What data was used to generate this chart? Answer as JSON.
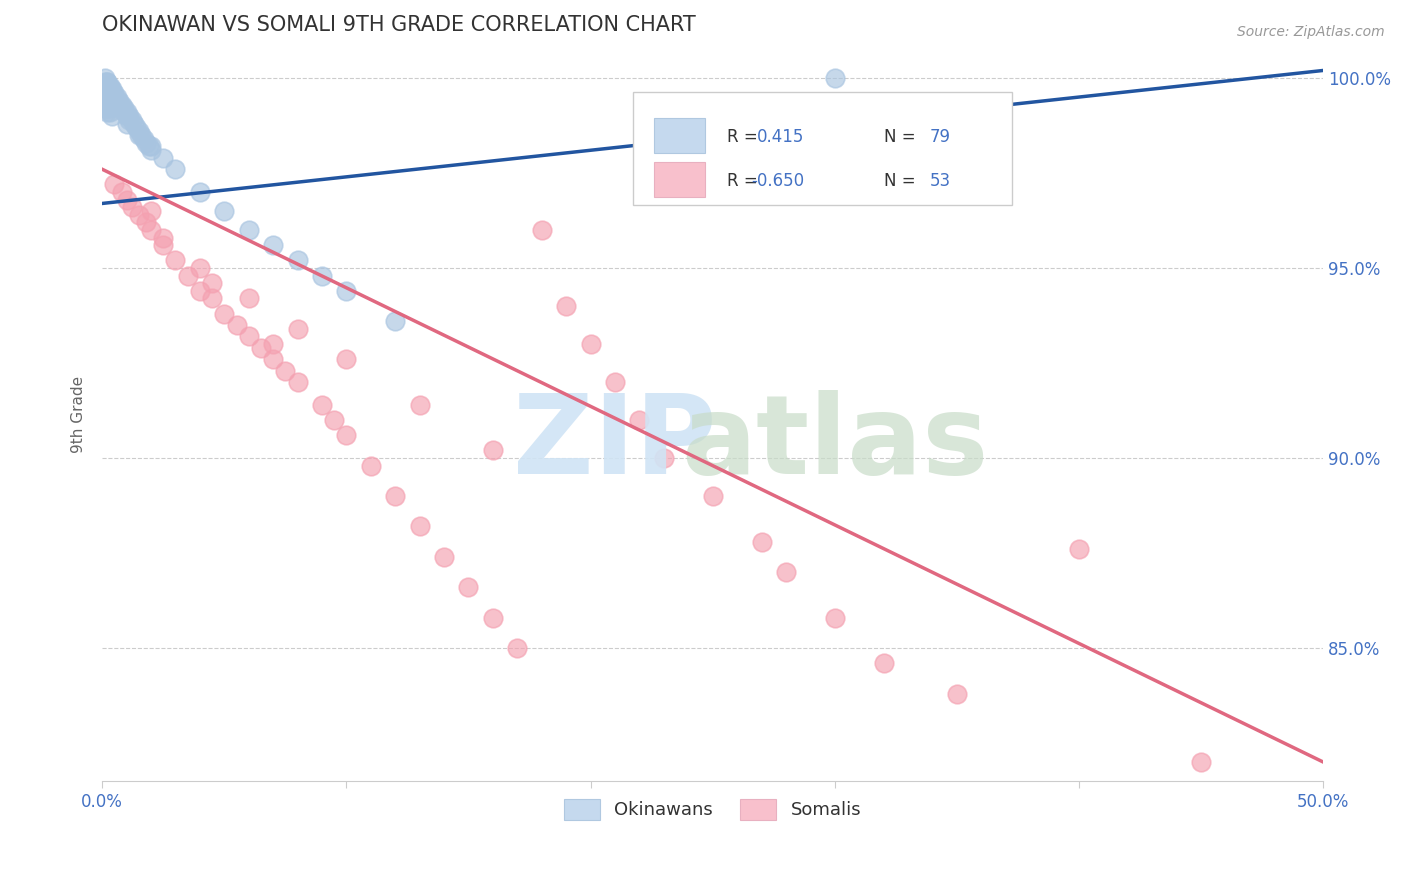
{
  "title": "OKINAWAN VS SOMALI 9TH GRADE CORRELATION CHART",
  "source": "Source: ZipAtlas.com",
  "ylabel": "9th Grade",
  "xmin": 0.0,
  "xmax": 0.5,
  "ymin": 0.815,
  "ymax": 1.008,
  "yticks": [
    1.0,
    0.95,
    0.9,
    0.85
  ],
  "ytick_labels": [
    "100.0%",
    "95.0%",
    "90.0%",
    "85.0%"
  ],
  "xticks": [
    0.0,
    0.1,
    0.2,
    0.3,
    0.4,
    0.5
  ],
  "xtick_labels": [
    "0.0%",
    "",
    "",
    "",
    "",
    "50.0%"
  ],
  "r_okinawan": 0.415,
  "n_okinawan": 79,
  "r_somali": -0.65,
  "n_somali": 53,
  "okinawan_color": "#a8c4e0",
  "somali_color": "#f4a0b0",
  "okinawan_line_color": "#2255a0",
  "somali_line_color": "#e06880",
  "legend_box_okinawan": "#c5d9ee",
  "legend_box_somali": "#f8c0cc",
  "title_color": "#333333",
  "tick_color": "#4472c4",
  "grid_color": "#cccccc",
  "okinawan_x": [
    0.001,
    0.002,
    0.002,
    0.003,
    0.003,
    0.004,
    0.004,
    0.005,
    0.005,
    0.006,
    0.006,
    0.007,
    0.007,
    0.008,
    0.008,
    0.009,
    0.009,
    0.01,
    0.01,
    0.011,
    0.011,
    0.012,
    0.013,
    0.014,
    0.015,
    0.016,
    0.017,
    0.018,
    0.019,
    0.02,
    0.001,
    0.002,
    0.003,
    0.004,
    0.005,
    0.006,
    0.007,
    0.001,
    0.002,
    0.003,
    0.004,
    0.005,
    0.006,
    0.001,
    0.002,
    0.003,
    0.004,
    0.001,
    0.002,
    0.003,
    0.001,
    0.002,
    0.001,
    0.002,
    0.003,
    0.001,
    0.002,
    0.003,
    0.004,
    0.001,
    0.002,
    0.01,
    0.015,
    0.02,
    0.025,
    0.03,
    0.04,
    0.05,
    0.06,
    0.07,
    0.08,
    0.09,
    0.1,
    0.12,
    0.002,
    0.3,
    0.001,
    0.001,
    0.002
  ],
  "okinawan_y": [
    1.0,
    0.999,
    0.998,
    0.998,
    0.997,
    0.997,
    0.996,
    0.996,
    0.995,
    0.995,
    0.994,
    0.994,
    0.993,
    0.993,
    0.992,
    0.992,
    0.991,
    0.991,
    0.99,
    0.99,
    0.989,
    0.989,
    0.988,
    0.987,
    0.986,
    0.985,
    0.984,
    0.983,
    0.982,
    0.981,
    0.999,
    0.998,
    0.997,
    0.996,
    0.995,
    0.994,
    0.993,
    0.998,
    0.997,
    0.996,
    0.995,
    0.994,
    0.993,
    0.997,
    0.996,
    0.995,
    0.994,
    0.996,
    0.995,
    0.994,
    0.995,
    0.994,
    0.994,
    0.993,
    0.992,
    0.993,
    0.992,
    0.991,
    0.99,
    0.992,
    0.991,
    0.988,
    0.985,
    0.982,
    0.979,
    0.976,
    0.97,
    0.965,
    0.96,
    0.956,
    0.952,
    0.948,
    0.944,
    0.936,
    0.999,
    1.0,
    0.996,
    0.997,
    0.998
  ],
  "somali_x": [
    0.005,
    0.008,
    0.01,
    0.012,
    0.015,
    0.018,
    0.02,
    0.025,
    0.03,
    0.035,
    0.04,
    0.045,
    0.05,
    0.055,
    0.06,
    0.065,
    0.07,
    0.075,
    0.08,
    0.09,
    0.095,
    0.1,
    0.11,
    0.12,
    0.13,
    0.14,
    0.15,
    0.16,
    0.17,
    0.18,
    0.19,
    0.2,
    0.21,
    0.22,
    0.23,
    0.25,
    0.27,
    0.28,
    0.3,
    0.32,
    0.025,
    0.04,
    0.06,
    0.08,
    0.1,
    0.13,
    0.16,
    0.02,
    0.045,
    0.07,
    0.35,
    0.4,
    0.45
  ],
  "somali_y": [
    0.972,
    0.97,
    0.968,
    0.966,
    0.964,
    0.962,
    0.96,
    0.956,
    0.952,
    0.948,
    0.944,
    0.942,
    0.938,
    0.935,
    0.932,
    0.929,
    0.926,
    0.923,
    0.92,
    0.914,
    0.91,
    0.906,
    0.898,
    0.89,
    0.882,
    0.874,
    0.866,
    0.858,
    0.85,
    0.96,
    0.94,
    0.93,
    0.92,
    0.91,
    0.9,
    0.89,
    0.878,
    0.87,
    0.858,
    0.846,
    0.958,
    0.95,
    0.942,
    0.934,
    0.926,
    0.914,
    0.902,
    0.965,
    0.946,
    0.93,
    0.838,
    0.876,
    0.82
  ],
  "okin_trendline": [
    0.0,
    0.5
  ],
  "okin_trend_y": [
    0.967,
    1.002
  ],
  "soma_trendline": [
    0.0,
    0.5
  ],
  "soma_trend_y": [
    0.976,
    0.82
  ]
}
